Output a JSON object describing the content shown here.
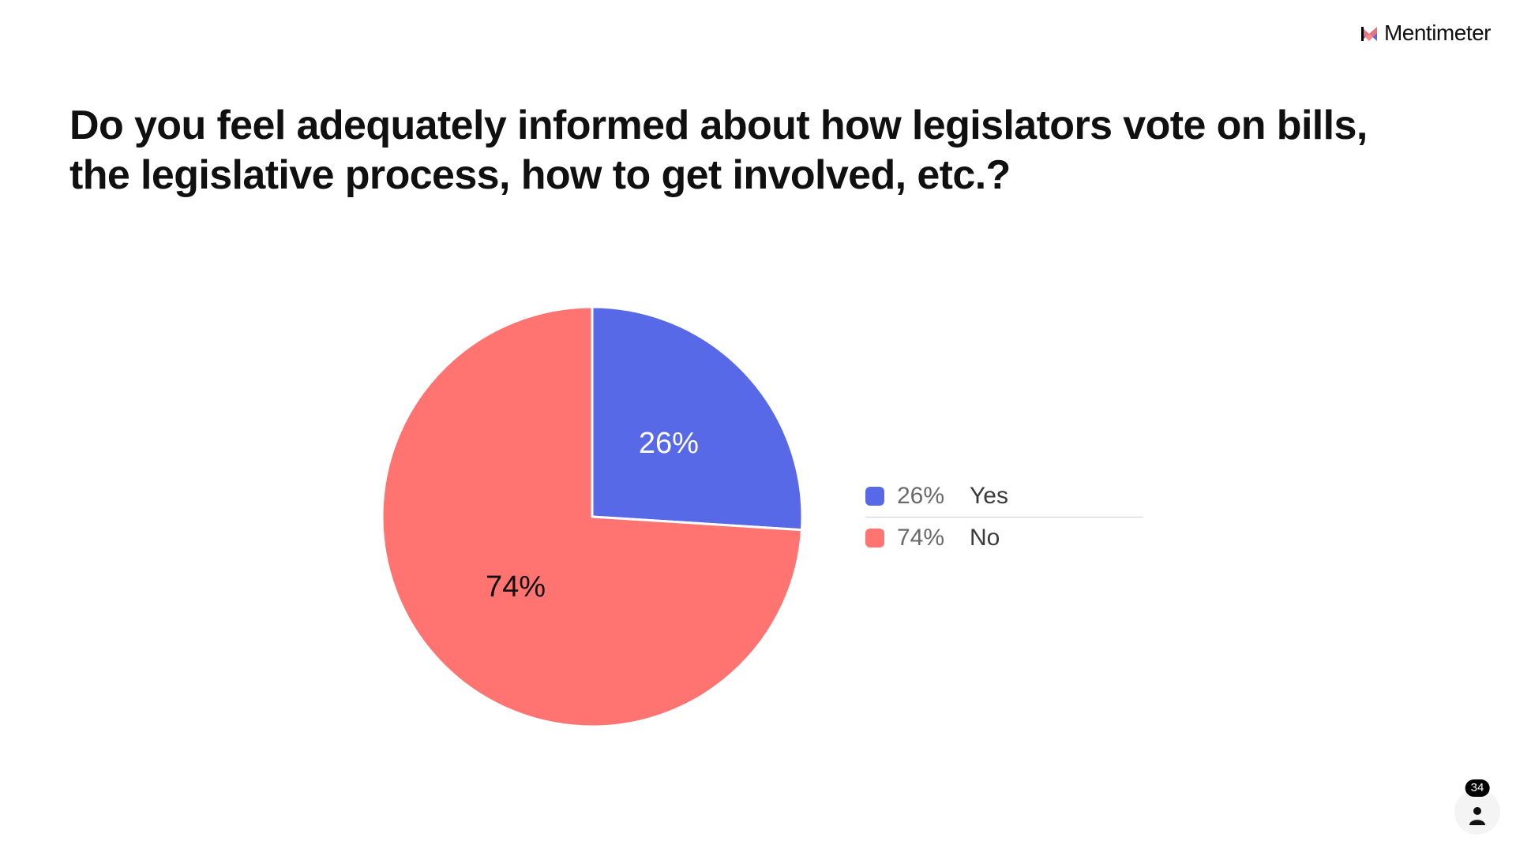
{
  "brand": {
    "name": "Mentimeter"
  },
  "question": "Do you feel adequately informed about how legislators vote on bills, the legislative process, how to get involved, etc.?",
  "chart_data": {
    "type": "pie",
    "title": "Do you feel adequately informed about how legislators vote on bills, the legislative process, how to get involved, etc.?",
    "categories": [
      "Yes",
      "No"
    ],
    "values": [
      26,
      74
    ],
    "value_labels": [
      "26%",
      "74%"
    ],
    "colors": [
      "#5769E7",
      "#FF7471"
    ],
    "label_colors": [
      "#ffffff",
      "#101010"
    ],
    "legend_position": "right"
  },
  "responses": {
    "count": "34",
    "icon": "person-icon"
  }
}
